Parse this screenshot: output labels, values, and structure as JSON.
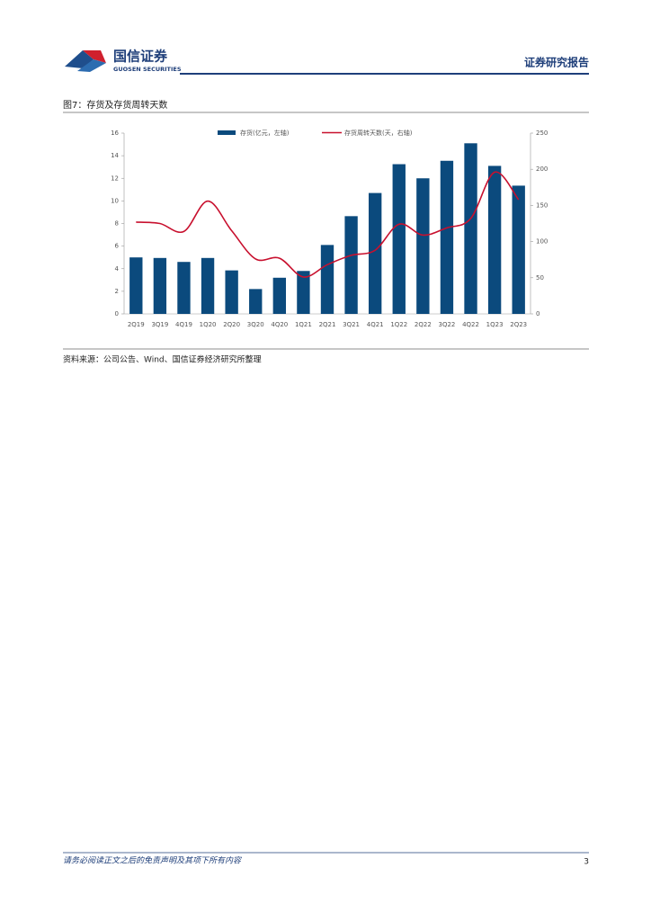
{
  "header": {
    "logo_cn": "国信证券",
    "logo_en": "GUOSEN SECURITIES",
    "report_type": "证券研究报告"
  },
  "figure": {
    "title": "图7：存货及存货周转天数",
    "source": "资料来源：公司公告、Wind、国信证券经济研究所整理"
  },
  "chart_data": {
    "type": "combo",
    "categories": [
      "2Q19",
      "3Q19",
      "4Q19",
      "1Q20",
      "2Q20",
      "3Q20",
      "4Q20",
      "1Q21",
      "2Q21",
      "3Q21",
      "4Q21",
      "1Q22",
      "2Q22",
      "3Q22",
      "4Q22",
      "1Q23",
      "2Q23"
    ],
    "series": [
      {
        "name": "存货(亿元，左轴)",
        "type": "bar",
        "color": "#0b4a7d",
        "values": [
          5.0,
          4.95,
          4.6,
          4.95,
          3.85,
          2.2,
          3.2,
          3.8,
          6.1,
          8.65,
          10.7,
          13.25,
          12.0,
          13.55,
          15.1,
          13.1,
          11.35
        ]
      },
      {
        "name": "存货周转天数(天，右轴)",
        "type": "line",
        "axis": "y2",
        "color": "#c8102e",
        "values": [
          127,
          125,
          114,
          156,
          115,
          76,
          77,
          51,
          68,
          81,
          88,
          124,
          109,
          119,
          132,
          196,
          158
        ]
      }
    ],
    "ylim": [
      0,
      16
    ],
    "yticks": [
      0,
      2,
      4,
      6,
      8,
      10,
      12,
      14,
      16
    ],
    "y2lim": [
      0,
      250
    ],
    "y2ticks": [
      0,
      50,
      100,
      150,
      200,
      250
    ]
  },
  "footer": {
    "disclaimer": "请务必阅读正文之后的免责声明及其项下所有内容",
    "page": "3"
  }
}
